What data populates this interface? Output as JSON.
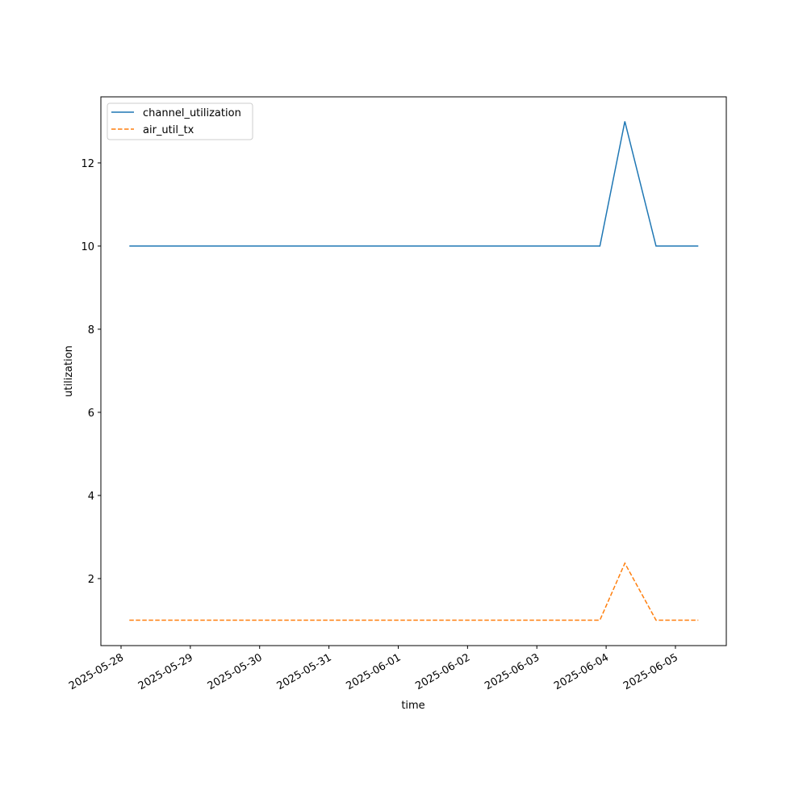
{
  "chart_data": {
    "type": "line",
    "x_label": "time",
    "y_label": "utilization",
    "x": [
      20236.12,
      20242.91,
      20243.27,
      20243.72,
      20244.33
    ],
    "series": [
      {
        "name": "channel_utilization",
        "color": "#1f77b4",
        "dash": "solid",
        "values": [
          10,
          10,
          13,
          10,
          10
        ]
      },
      {
        "name": "air_util_tx",
        "color": "#ff7f0e",
        "dash": "dashed",
        "values": [
          1,
          1,
          2.37,
          1,
          1
        ]
      }
    ],
    "xlim": [
      20235.709,
      20244.734
    ],
    "xticks": [
      {
        "value": 20236,
        "label": "2025-05-28"
      },
      {
        "value": 20237,
        "label": "2025-05-29"
      },
      {
        "value": 20238,
        "label": "2025-05-30"
      },
      {
        "value": 20239,
        "label": "2025-05-31"
      },
      {
        "value": 20240,
        "label": "2025-06-01"
      },
      {
        "value": 20241,
        "label": "2025-06-02"
      },
      {
        "value": 20242,
        "label": "2025-06-03"
      },
      {
        "value": 20243,
        "label": "2025-06-04"
      },
      {
        "value": 20244,
        "label": "2025-06-05"
      }
    ],
    "ylim": [
      0.388,
      13.59
    ],
    "yticks": [
      2,
      4,
      6,
      8,
      10,
      12
    ],
    "legend": "upper left"
  }
}
